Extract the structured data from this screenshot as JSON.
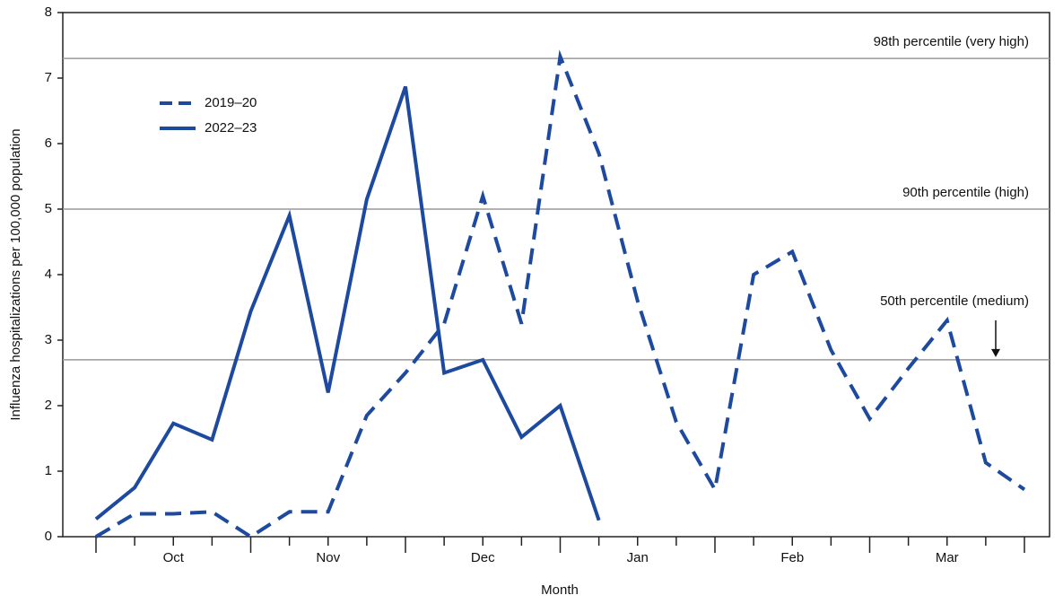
{
  "chart_data": {
    "type": "line",
    "x_label": "Month",
    "y_label": "Influenza hospitalizations per 100,000 population",
    "categories": [
      null,
      null,
      "Oct",
      null,
      null,
      null,
      "Nov",
      null,
      null,
      null,
      "Dec",
      null,
      null,
      null,
      "Jan",
      null,
      null,
      null,
      "Feb",
      null,
      null,
      null,
      "Mar",
      null,
      null
    ],
    "series": [
      {
        "name": "2019–20",
        "color": "#1d4a9e",
        "dash": true,
        "values": [
          0,
          0.35,
          0.35,
          0.38,
          0,
          0.38,
          0.38,
          1.85,
          2.5,
          3.25,
          5.2,
          3.25,
          7.33,
          5.85,
          3.6,
          1.75,
          0.72,
          4.0,
          4.35,
          2.85,
          1.8,
          2.57,
          3.3,
          1.13,
          0.72
        ]
      },
      {
        "name": "2022–23",
        "color": "#1d4a9e",
        "dash": false,
        "values": [
          0.27,
          0.75,
          1.73,
          1.48,
          3.44,
          4.9,
          2.2,
          5.15,
          6.87,
          2.5,
          2.7,
          1.52,
          2.0,
          0.25,
          null,
          null,
          null,
          null,
          null,
          null,
          null,
          null,
          null,
          null,
          null
        ]
      }
    ],
    "reference_lines": [
      {
        "value": 7.3,
        "label": "98th percentile (very high)"
      },
      {
        "value": 5,
        "label": "90th percentile (high)"
      },
      {
        "value": 2.7,
        "label": "50th percentile (medium)",
        "arrow": true
      }
    ],
    "ylim": [
      0,
      8
    ],
    "yticks": [
      0,
      1,
      2,
      3,
      4,
      5,
      6,
      7,
      8
    ]
  }
}
